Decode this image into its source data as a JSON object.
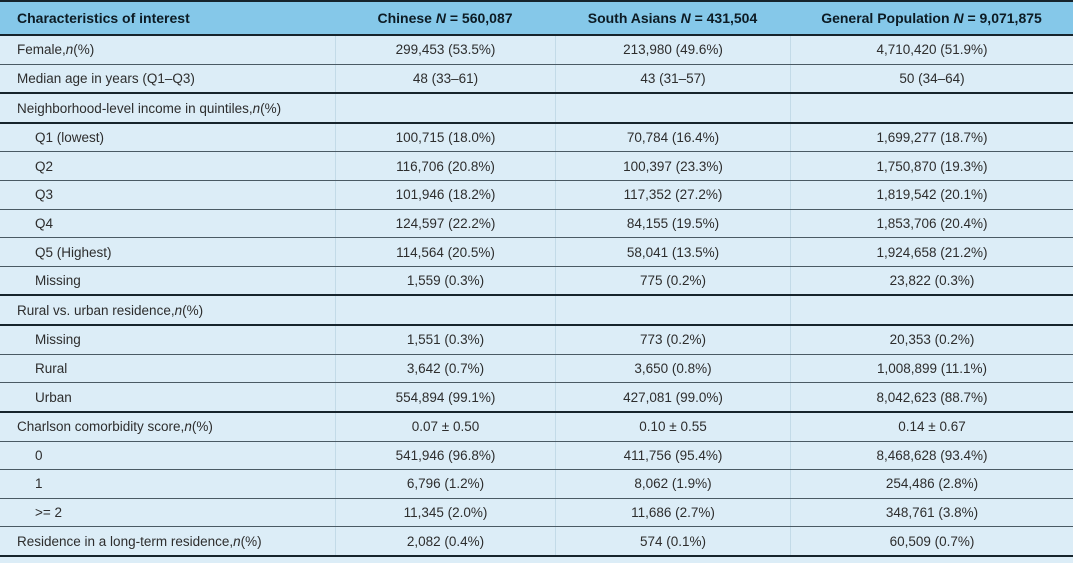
{
  "table": {
    "colors": {
      "header_bg": "#85c8e9",
      "row_bg": "#dcedf7",
      "rule_dark": "#16242c",
      "rule_light": "#4a5a64",
      "column_separator": "#c3dbe8",
      "text": "#2d2d2d"
    },
    "columns": [
      {
        "pre": "Characteristics of interest",
        "it": "",
        "post": ""
      },
      {
        "pre": "Chinese ",
        "it": "N",
        "post": " = 560,087"
      },
      {
        "pre": "South Asians ",
        "it": "N",
        "post": " = 431,504"
      },
      {
        "pre": "General Population ",
        "it": "N",
        "post": " = 9,071,875"
      }
    ],
    "rows": [
      {
        "label": {
          "pre": "Female, ",
          "it": "n",
          "post": " (%)"
        },
        "indent": false,
        "values": [
          "299,453 (53.5%)",
          "213,980 (49.6%)",
          "4,710,420 (51.9%)"
        ]
      },
      {
        "label": {
          "pre": "Median age in years (Q1–Q3)",
          "it": "",
          "post": ""
        },
        "indent": false,
        "values": [
          "48 (33–61)",
          "43 (31–57)",
          "50 (34–64)"
        ]
      },
      {
        "label": {
          "pre": "Neighborhood-level income in quintiles, ",
          "it": "n",
          "post": " (%)"
        },
        "indent": false,
        "values": [
          "",
          "",
          ""
        ]
      },
      {
        "label": {
          "pre": "Q1 (lowest)",
          "it": "",
          "post": ""
        },
        "indent": true,
        "values": [
          "100,715 (18.0%)",
          "70,784 (16.4%)",
          "1,699,277 (18.7%)"
        ]
      },
      {
        "label": {
          "pre": "Q2",
          "it": "",
          "post": ""
        },
        "indent": true,
        "values": [
          "116,706 (20.8%)",
          "100,397 (23.3%)",
          "1,750,870 (19.3%)"
        ]
      },
      {
        "label": {
          "pre": "Q3",
          "it": "",
          "post": ""
        },
        "indent": true,
        "values": [
          "101,946 (18.2%)",
          "117,352 (27.2%)",
          "1,819,542 (20.1%)"
        ]
      },
      {
        "label": {
          "pre": "Q4",
          "it": "",
          "post": ""
        },
        "indent": true,
        "values": [
          "124,597 (22.2%)",
          "84,155 (19.5%)",
          "1,853,706 (20.4%)"
        ]
      },
      {
        "label": {
          "pre": "Q5 (Highest)",
          "it": "",
          "post": ""
        },
        "indent": true,
        "values": [
          "114,564 (20.5%)",
          "58,041 (13.5%)",
          "1,924,658 (21.2%)"
        ]
      },
      {
        "label": {
          "pre": "Missing",
          "it": "",
          "post": ""
        },
        "indent": true,
        "values": [
          "1,559 (0.3%)",
          "775 (0.2%)",
          "23,822 (0.3%)"
        ]
      },
      {
        "label": {
          "pre": "Rural vs. urban residence, ",
          "it": "n",
          "post": " (%)"
        },
        "indent": false,
        "values": [
          "",
          "",
          ""
        ]
      },
      {
        "label": {
          "pre": "Missing",
          "it": "",
          "post": ""
        },
        "indent": true,
        "values": [
          "1,551 (0.3%)",
          "773 (0.2%)",
          "20,353 (0.2%)"
        ]
      },
      {
        "label": {
          "pre": "Rural",
          "it": "",
          "post": ""
        },
        "indent": true,
        "values": [
          "3,642 (0.7%)",
          "3,650 (0.8%)",
          "1,008,899 (11.1%)"
        ]
      },
      {
        "label": {
          "pre": "Urban",
          "it": "",
          "post": ""
        },
        "indent": true,
        "values": [
          "554,894 (99.1%)",
          "427,081 (99.0%)",
          "8,042,623 (88.7%)"
        ]
      },
      {
        "label": {
          "pre": "Charlson comorbidity score, ",
          "it": "n",
          "post": " (%)"
        },
        "indent": false,
        "values": [
          "0.07 ± 0.50",
          "0.10 ± 0.55",
          "0.14 ± 0.67"
        ]
      },
      {
        "label": {
          "pre": "0",
          "it": "",
          "post": ""
        },
        "indent": true,
        "values": [
          "541,946 (96.8%)",
          "411,756 (95.4%)",
          "8,468,628 (93.4%)"
        ]
      },
      {
        "label": {
          "pre": "1",
          "it": "",
          "post": ""
        },
        "indent": true,
        "values": [
          "6,796 (1.2%)",
          "8,062 (1.9%)",
          "254,486 (2.8%)"
        ]
      },
      {
        "label": {
          "pre": ">= 2",
          "it": "",
          "post": ""
        },
        "indent": true,
        "values": [
          "11,345 (2.0%)",
          "11,686 (2.7%)",
          "348,761 (3.8%)"
        ]
      },
      {
        "label": {
          "pre": "Residence in a long-term residence, ",
          "it": "n",
          "post": " (%)"
        },
        "indent": false,
        "values": [
          "2,082 (0.4%)",
          "574 (0.1%)",
          "60,509 (0.7%)"
        ]
      }
    ]
  }
}
